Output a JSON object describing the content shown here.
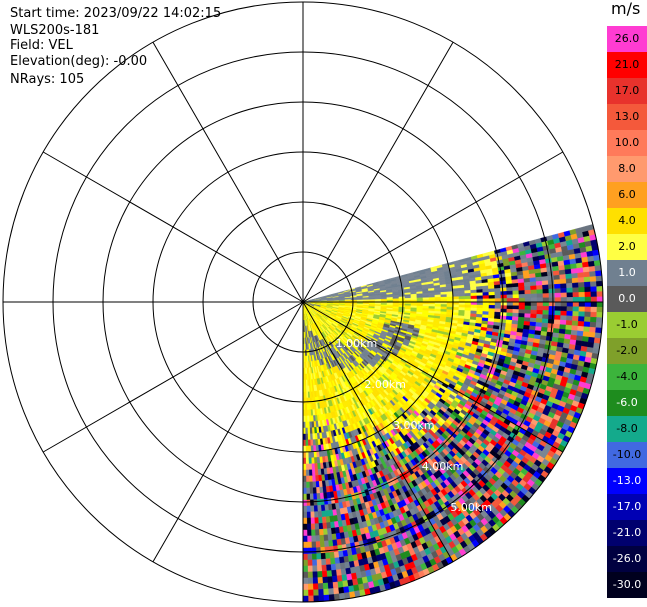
{
  "header": {
    "start_time": "Start time: 2023/09/22 14:02:15",
    "instrument": "WLS200s-181",
    "field": "Field: VEL",
    "elevation": "Elevation(deg): -0.00",
    "nrays": "NRays: 105"
  },
  "colorbar": {
    "unit": "m/s",
    "entries": [
      {
        "label": "26.0",
        "color": "#ff3cd2"
      },
      {
        "label": "21.0",
        "color": "#ff0000"
      },
      {
        "label": "17.0",
        "color": "#e8322c"
      },
      {
        "label": "13.0",
        "color": "#f4593b"
      },
      {
        "label": "10.0",
        "color": "#ff7a5a"
      },
      {
        "label": "8.0",
        "color": "#ff9a6e"
      },
      {
        "label": "6.0",
        "color": "#ffa020"
      },
      {
        "label": "4.0",
        "color": "#ffe000"
      },
      {
        "label": "2.0",
        "color": "#ffff44"
      },
      {
        "label": "1.0",
        "color": "#708090"
      },
      {
        "label": "0.0",
        "color": "#5a5a5a"
      },
      {
        "label": "-1.0",
        "color": "#9acd32"
      },
      {
        "label": "-2.0",
        "color": "#7fa02a"
      },
      {
        "label": "-4.0",
        "color": "#3cb43c"
      },
      {
        "label": "-6.0",
        "color": "#1e8c1e"
      },
      {
        "label": "-8.0",
        "color": "#14aa8c"
      },
      {
        "label": "-10.0",
        "color": "#4169e1"
      },
      {
        "label": "-13.0",
        "color": "#0000ff"
      },
      {
        "label": "-17.0",
        "color": "#0000b4"
      },
      {
        "label": "-21.0",
        "color": "#00006e"
      },
      {
        "label": "-26.0",
        "color": "#000040"
      },
      {
        "label": "-30.0",
        "color": "#00001e"
      }
    ]
  },
  "chart_data": {
    "type": "heatmap",
    "projection": "polar PPI",
    "field": "VEL",
    "units": "m/s",
    "range_rings_km": [
      1.0,
      2.0,
      3.0,
      4.0,
      5.0
    ],
    "ring_labels": [
      "1.00km",
      "2.00km",
      "3.00km",
      "4.00km",
      "5.00km"
    ],
    "ring_label_azimuth_deg": 145,
    "max_range_km": 6.0,
    "azimuth_spokes_deg": [
      0,
      30,
      60,
      90,
      120,
      150,
      180,
      210,
      240,
      270,
      300,
      330
    ],
    "data_sector_deg": [
      75,
      180
    ],
    "grid": true,
    "vmin": -30.0,
    "vmax": 26.0
  }
}
